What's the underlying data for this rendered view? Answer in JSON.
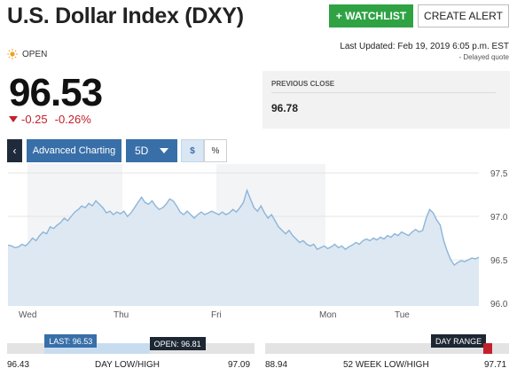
{
  "header": {
    "title": "U.S. Dollar Index (DXY)",
    "watchlist_label": "+ WATCHLIST",
    "alert_label": "CREATE ALERT"
  },
  "status": {
    "market_state": "OPEN",
    "last_updated": "Last Updated: Feb 19, 2019 6:05 p.m. EST",
    "delayed": "-  Delayed quote"
  },
  "quote": {
    "price": "96.53",
    "change": "-0.25",
    "change_pct": "-0.26%",
    "change_color": "#c2202b",
    "previous_close_label": "PREVIOUS CLOSE",
    "previous_close": "96.78"
  },
  "controls": {
    "back_icon": "chevron-left-icon",
    "advanced_label": "Advanced Charting",
    "range_label": "5D",
    "usd_label": "$",
    "pct_label": "%"
  },
  "chart_data": {
    "type": "area",
    "x_labels": [
      "Wed",
      "Thu",
      "Fri",
      "Mon",
      "Tue"
    ],
    "y_ticks": [
      "97.5",
      "97.0",
      "96.5",
      "96.0"
    ],
    "ylim": [
      96.0,
      97.5
    ],
    "line_color": "#8db5da",
    "fill_color": "#dde8f2",
    "grid": true,
    "series": [
      {
        "values": [
          96.67,
          96.66,
          96.64,
          96.65,
          96.68,
          96.66,
          96.7,
          96.75,
          96.72,
          96.78,
          96.82,
          96.8,
          96.88,
          96.86,
          96.9,
          96.93,
          96.98,
          96.95,
          97.0,
          97.05,
          97.08,
          97.12,
          97.1,
          97.15,
          97.12,
          97.18,
          97.14,
          97.1,
          97.04,
          97.06,
          97.02,
          97.05,
          97.03,
          97.06,
          97.0,
          97.04,
          97.1,
          97.16,
          97.22,
          97.16,
          97.14,
          97.18,
          97.12,
          97.08,
          97.1,
          97.14,
          97.2,
          97.18,
          97.12,
          97.05,
          97.02,
          97.06,
          97.02,
          96.98,
          97.02,
          97.05,
          97.02,
          97.04,
          97.06,
          97.04,
          97.02,
          97.05,
          97.02,
          97.04,
          97.08,
          97.05,
          97.1,
          97.16,
          97.3,
          97.2,
          97.1,
          97.06,
          97.12,
          97.04,
          96.98,
          97.02,
          96.95,
          96.88,
          96.84,
          96.8,
          96.84,
          96.78,
          96.74,
          96.7,
          96.72,
          96.68,
          96.66,
          96.68,
          96.62,
          96.64,
          96.66,
          96.63,
          96.65,
          96.68,
          96.64,
          96.66,
          96.62,
          96.65,
          96.67,
          96.7,
          96.68,
          96.72,
          96.74,
          96.72,
          96.75,
          96.73,
          96.76,
          96.74,
          96.78,
          96.76,
          96.8,
          96.78,
          96.82,
          96.8,
          96.78,
          96.82,
          96.85,
          96.82,
          96.84,
          96.98,
          97.08,
          97.04,
          96.96,
          96.9,
          96.72,
          96.6,
          96.5,
          96.44,
          96.47,
          96.49,
          96.48,
          96.5,
          96.52,
          96.51,
          96.53
        ]
      }
    ]
  },
  "day_range": {
    "low": "96.43",
    "high": "97.09",
    "label": "DAY LOW/HIGH",
    "last_flag": "LAST: 96.53",
    "open_flag": "OPEN: 96.81",
    "last": 96.53,
    "open": 96.81
  },
  "week52_range": {
    "low": "88.94",
    "high": "97.71",
    "label": "52 WEEK LOW/HIGH",
    "flag": "DAY RANGE"
  },
  "colors": {
    "watchlist_green": "#2fa344",
    "accent_blue": "#386fa8",
    "dark": "#1c2733",
    "down_red": "#c2202b"
  }
}
